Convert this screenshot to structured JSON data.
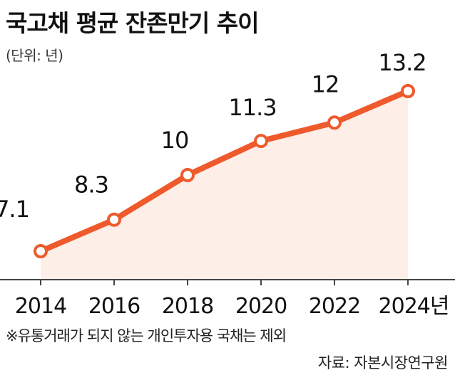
{
  "header": {
    "title": "국고채 평균 잔존만기 추이",
    "unit": "(단위: 년)"
  },
  "chart_data": {
    "type": "line",
    "title": "국고채 평균 잔존만기 추이",
    "unit_label": "(단위: 년)",
    "x": [
      "2014",
      "2016",
      "2018",
      "2020",
      "2022",
      "2024년"
    ],
    "series": [
      {
        "name": "국고채 평균 잔존만기",
        "values": [
          7.1,
          8.3,
          10,
          11.3,
          12,
          13.2
        ],
        "labels": [
          "7.1",
          "8.3",
          "10",
          "11.3",
          "12",
          "13.2"
        ]
      }
    ],
    "xlabel": "",
    "ylabel": "",
    "ylim": [
      5.0,
      13.6
    ],
    "grid": false,
    "line_color": "#ef5a2c",
    "fill_color": "#fdeee8",
    "axis_color": "#444444"
  },
  "footnote": "※유통거래가 되지 않는 개인투자용 국채는 제외",
  "source": {
    "label": "자료:",
    "name": "자본시장연구원"
  }
}
